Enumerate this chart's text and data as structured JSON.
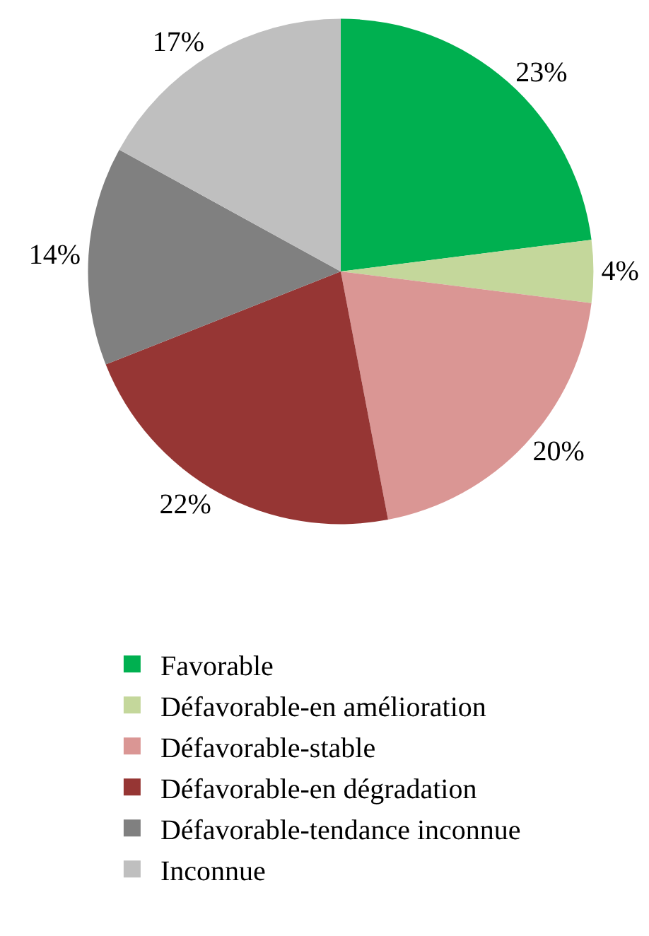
{
  "chart_data": {
    "type": "pie",
    "categories": [
      "Favorable",
      "Défavorable-en amélioration",
      "Défavorable-stable",
      "Défavorable-en dégradation",
      "Défavorable-tendance inconnue",
      "Inconnue"
    ],
    "values": [
      23,
      4,
      20,
      22,
      14,
      17
    ],
    "value_labels": [
      "23%",
      "4%",
      "20%",
      "22%",
      "14%",
      "17%"
    ],
    "colors": [
      "#00b050",
      "#c4d79b",
      "#da9694",
      "#963634",
      "#808080",
      "#bfbfbf"
    ],
    "legend": "bottom"
  }
}
